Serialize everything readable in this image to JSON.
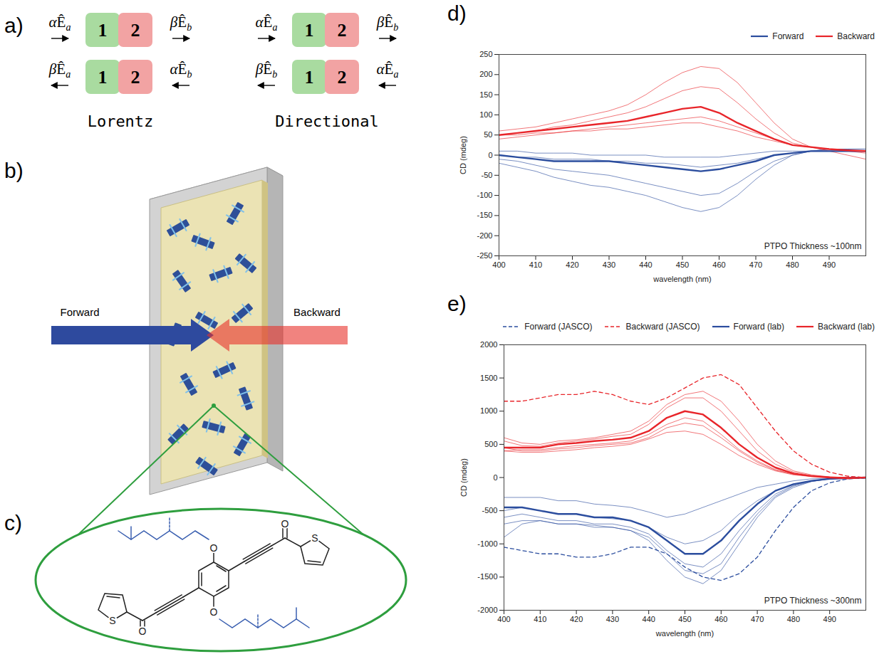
{
  "chart_data": [
    {
      "type": "line",
      "letter": "d)",
      "x_label": "wavelength (nm)",
      "y_label": "CD (mdeg)",
      "annotation": "PTPO Thickness ~100nm",
      "legend": "top",
      "grid": false,
      "x": [
        400,
        405,
        410,
        415,
        420,
        425,
        430,
        435,
        440,
        445,
        450,
        455,
        460,
        465,
        470,
        475,
        480,
        485,
        490,
        495,
        500
      ],
      "xlim": [
        400,
        500
      ],
      "xticks": [
        400,
        410,
        420,
        430,
        440,
        450,
        460,
        470,
        480,
        490
      ],
      "ylim": [
        -250,
        250
      ],
      "yticks": [
        -250,
        -200,
        -150,
        -100,
        -50,
        0,
        50,
        100,
        150,
        200,
        250
      ],
      "series": [
        {
          "name": "Forward",
          "color": "#2b4d9e",
          "line_style": "solid",
          "values": [
            0,
            -5,
            -10,
            -15,
            -15,
            -15,
            -15,
            -20,
            -25,
            -30,
            -35,
            -40,
            -35,
            -25,
            -15,
            0,
            5,
            10,
            10,
            10,
            10
          ],
          "replicates": [
            [
              -20,
              -30,
              -40,
              -55,
              -65,
              -75,
              -80,
              -90,
              -100,
              -115,
              -130,
              -140,
              -130,
              -100,
              -60,
              -25,
              0,
              10,
              15,
              15,
              15
            ],
            [
              -10,
              -15,
              -25,
              -35,
              -40,
              -45,
              -50,
              -60,
              -70,
              -80,
              -90,
              -100,
              -95,
              -70,
              -40,
              -15,
              0,
              10,
              10,
              10,
              10
            ],
            [
              0,
              -5,
              -5,
              -10,
              -10,
              -10,
              -15,
              -15,
              -20,
              -20,
              -25,
              -30,
              -25,
              -20,
              -10,
              0,
              5,
              10,
              10,
              10,
              10
            ],
            [
              10,
              10,
              5,
              5,
              5,
              0,
              0,
              0,
              0,
              -5,
              -5,
              -5,
              -5,
              0,
              5,
              10,
              10,
              10,
              15,
              15,
              15
            ]
          ]
        },
        {
          "name": "Backward",
          "color": "#e8252a",
          "line_style": "solid",
          "values": [
            50,
            55,
            60,
            65,
            70,
            75,
            80,
            85,
            95,
            105,
            115,
            120,
            105,
            80,
            60,
            40,
            25,
            20,
            15,
            12,
            10
          ],
          "replicates": [
            [
              60,
              65,
              70,
              80,
              90,
              100,
              110,
              125,
              150,
              180,
              205,
              220,
              215,
              180,
              130,
              80,
              40,
              20,
              10,
              0,
              -10
            ],
            [
              50,
              55,
              60,
              70,
              75,
              85,
              95,
              105,
              120,
              140,
              160,
              170,
              165,
              130,
              90,
              55,
              30,
              20,
              15,
              10,
              5
            ],
            [
              40,
              45,
              50,
              55,
              60,
              65,
              70,
              75,
              80,
              85,
              90,
              95,
              85,
              70,
              55,
              40,
              25,
              20,
              15,
              12,
              10
            ],
            [
              50,
              50,
              55,
              55,
              60,
              60,
              65,
              65,
              70,
              75,
              80,
              80,
              70,
              60,
              45,
              35,
              25,
              20,
              15,
              12,
              10
            ]
          ]
        }
      ]
    },
    {
      "type": "line",
      "letter": "e)",
      "x_label": "wavelength (nm)",
      "y_label": "CD (mdeg)",
      "annotation": "PTPO Thickness ~300nm",
      "legend": "top",
      "grid": false,
      "x": [
        400,
        405,
        410,
        415,
        420,
        425,
        430,
        435,
        440,
        445,
        450,
        455,
        460,
        465,
        470,
        475,
        480,
        485,
        490,
        495,
        500
      ],
      "xlim": [
        400,
        500
      ],
      "xticks": [
        400,
        410,
        420,
        430,
        440,
        450,
        460,
        470,
        480,
        490
      ],
      "ylim": [
        -2000,
        2000
      ],
      "yticks": [
        -2000,
        -1500,
        -1000,
        -500,
        0,
        500,
        1000,
        1500,
        2000
      ],
      "series": [
        {
          "name": "Forward (JASCO)",
          "color": "#2b4d9e",
          "line_style": "dashed",
          "values": [
            -1050,
            -1100,
            -1150,
            -1150,
            -1200,
            -1200,
            -1150,
            -1050,
            -1050,
            -1150,
            -1350,
            -1500,
            -1550,
            -1450,
            -1200,
            -800,
            -450,
            -200,
            -80,
            -20,
            -10
          ]
        },
        {
          "name": "Backward (JASCO)",
          "color": "#e8252a",
          "line_style": "dashed",
          "values": [
            1150,
            1150,
            1200,
            1250,
            1250,
            1300,
            1250,
            1150,
            1100,
            1200,
            1350,
            1500,
            1550,
            1400,
            1050,
            700,
            400,
            200,
            80,
            20,
            0
          ]
        },
        {
          "name": "Forward (lab)",
          "color": "#2b4d9e",
          "line_style": "solid",
          "values": [
            -450,
            -450,
            -500,
            -550,
            -550,
            -600,
            -600,
            -650,
            -750,
            -950,
            -1150,
            -1150,
            -950,
            -650,
            -400,
            -200,
            -100,
            -50,
            -20,
            -10,
            0
          ],
          "replicates": [
            [
              -300,
              -300,
              -300,
              -350,
              -350,
              -400,
              -420,
              -450,
              -520,
              -600,
              -550,
              -450,
              -350,
              -250,
              -150,
              -100,
              -50,
              -20,
              -10,
              0,
              0
            ],
            [
              -500,
              -450,
              -500,
              -550,
              -550,
              -600,
              -620,
              -650,
              -750,
              -900,
              -1000,
              -950,
              -800,
              -550,
              -350,
              -200,
              -100,
              -50,
              -20,
              -10,
              0
            ],
            [
              -600,
              -550,
              -600,
              -650,
              -650,
              -700,
              -700,
              -750,
              -850,
              -1100,
              -1300,
              -1350,
              -1150,
              -800,
              -500,
              -250,
              -120,
              -50,
              -20,
              -10,
              0
            ],
            [
              -700,
              -650,
              -650,
              -700,
              -700,
              -750,
              -750,
              -800,
              -900,
              -1150,
              -1400,
              -1450,
              -1300,
              -900,
              -550,
              -280,
              -130,
              -60,
              -20,
              -10,
              0
            ],
            [
              -900,
              -700,
              -650,
              -700,
              -700,
              -720,
              -750,
              -800,
              -950,
              -1250,
              -1500,
              -1600,
              -1400,
              -1000,
              -600,
              -300,
              -150,
              -60,
              -20,
              -10,
              0
            ]
          ]
        },
        {
          "name": "Backward (lab)",
          "color": "#e8252a",
          "line_style": "solid",
          "values": [
            450,
            450,
            450,
            500,
            520,
            550,
            570,
            600,
            700,
            900,
            1000,
            950,
            750,
            500,
            300,
            150,
            60,
            20,
            0,
            -10,
            0
          ],
          "replicates": [
            [
              600,
              520,
              500,
              550,
              570,
              600,
              650,
              700,
              850,
              1100,
              1250,
              1300,
              1150,
              850,
              500,
              250,
              100,
              40,
              10,
              0,
              0
            ],
            [
              550,
              480,
              470,
              520,
              550,
              580,
              620,
              650,
              800,
              1050,
              1200,
              1200,
              1000,
              700,
              400,
              200,
              80,
              30,
              10,
              0,
              0
            ],
            [
              400,
              420,
              420,
              450,
              480,
              500,
              520,
              550,
              650,
              800,
              900,
              850,
              650,
              420,
              250,
              120,
              50,
              20,
              5,
              0,
              0
            ],
            [
              450,
              400,
              400,
              430,
              450,
              480,
              500,
              520,
              600,
              750,
              820,
              780,
              600,
              400,
              230,
              110,
              50,
              20,
              5,
              0,
              0
            ],
            [
              400,
              380,
              380,
              400,
              420,
              450,
              470,
              500,
              580,
              680,
              700,
              650,
              500,
              330,
              200,
              100,
              40,
              15,
              5,
              0,
              0
            ]
          ]
        }
      ]
    }
  ],
  "panel_a": {
    "letter": "a)",
    "symbol": "Ê",
    "blocks": [
      "1",
      "2"
    ],
    "diagrams": [
      {
        "caption": "Lorentz",
        "rows": [
          {
            "left": {
              "coef": "α",
              "sub": "a"
            },
            "right": {
              "coef": "β",
              "sub": "b"
            },
            "arrow": "right"
          },
          {
            "left": {
              "coef": "β",
              "sub": "a"
            },
            "right": {
              "coef": "α",
              "sub": "b"
            },
            "arrow": "left"
          }
        ]
      },
      {
        "caption": "Directional",
        "rows": [
          {
            "left": {
              "coef": "α",
              "sub": "a"
            },
            "right": {
              "coef": "β",
              "sub": "b"
            },
            "arrow": "right"
          },
          {
            "left": {
              "coef": "β",
              "sub": "b"
            },
            "right": {
              "coef": "α",
              "sub": "a"
            },
            "arrow": "left"
          }
        ]
      }
    ]
  },
  "panel_b": {
    "letter": "b)",
    "arrows": [
      "Forward",
      "Backward"
    ]
  },
  "panel_c": {
    "letter": "c)",
    "atoms": [
      "O",
      "O",
      "O",
      "O",
      "S",
      "S"
    ]
  }
}
